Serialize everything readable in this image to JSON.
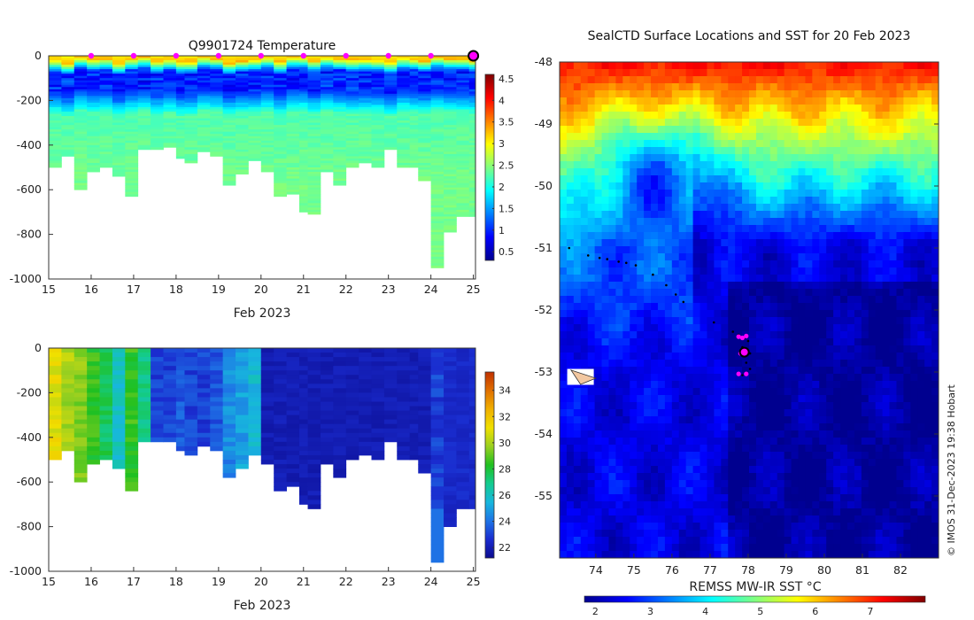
{
  "colors": {
    "jet": [
      "#00008f",
      "#0000ff",
      "#0080ff",
      "#00ffff",
      "#80ff80",
      "#ffff00",
      "#ff8000",
      "#ff0000",
      "#800000"
    ],
    "parula": [
      "#0b0b8f",
      "#1a2ccf",
      "#1e74e6",
      "#17b7dd",
      "#13cc8f",
      "#20c020",
      "#9ad020",
      "#f0e000",
      "#f0b000",
      "#e07000",
      "#c03000"
    ],
    "marker": "#ff00ff",
    "land": "#f2c7a0"
  },
  "chart_data": [
    {
      "id": "temperature-section",
      "type": "heatmap",
      "title": "Q9901724  Temperature",
      "xlabel": "Feb 2023",
      "ylabel": "",
      "x_ticks": [
        "15",
        "16",
        "17",
        "18",
        "19",
        "20",
        "21",
        "22",
        "23",
        "24",
        "25"
      ],
      "y_ticks": [
        "0",
        "-200",
        "-400",
        "-600",
        "-800",
        "-1000"
      ],
      "xlim": [
        15,
        25.05
      ],
      "ylim": [
        -1000,
        0
      ],
      "colorbar": {
        "min": 0.3,
        "max": 4.6,
        "ticks": [
          "0.5",
          "1",
          "1.5",
          "2",
          "2.5",
          "3",
          "3.5",
          "4",
          "4.5"
        ]
      },
      "profile_dates": [
        15.0,
        15.3,
        15.6,
        15.9,
        16.2,
        16.5,
        16.8,
        17.1,
        17.4,
        17.7,
        18.0,
        18.2,
        18.5,
        18.8,
        19.1,
        19.4,
        19.7,
        20.0,
        20.3,
        20.6,
        20.9,
        21.1,
        21.4,
        21.7,
        22.0,
        22.3,
        22.6,
        22.9,
        23.2,
        23.5,
        23.7,
        24.0,
        24.3,
        24.6,
        24.9,
        25.05
      ],
      "profile_max_depths": [
        -500,
        -450,
        -600,
        -520,
        -500,
        -540,
        -630,
        -420,
        -420,
        -410,
        -460,
        -480,
        -430,
        -450,
        -580,
        -530,
        -470,
        -520,
        -630,
        -620,
        -700,
        -710,
        -520,
        -580,
        -500,
        -480,
        -500,
        -420,
        -500,
        -500,
        -560,
        -950,
        -790,
        -720,
        -720,
        -550
      ],
      "surface_markers": [
        16,
        17,
        18,
        19,
        20,
        21,
        22,
        23,
        24
      ],
      "current_marker": 25
    },
    {
      "id": "second-section",
      "type": "heatmap",
      "title": "",
      "xlabel": "Feb 2023",
      "x_ticks": [
        "15",
        "16",
        "17",
        "18",
        "19",
        "20",
        "21",
        "22",
        "23",
        "24",
        "25"
      ],
      "y_ticks": [
        "0",
        "-200",
        "-400",
        "-600",
        "-800",
        "-1000"
      ],
      "xlim": [
        15,
        25.05
      ],
      "ylim": [
        -1000,
        0
      ],
      "colorbar": {
        "min": 21.2,
        "max": 35.4,
        "ticks": [
          "22",
          "24",
          "26",
          "28",
          "30",
          "32",
          "34"
        ]
      },
      "profile_values": [
        31,
        30,
        29.5,
        28.5,
        27.5,
        26,
        28.5,
        27,
        23,
        23,
        23.5,
        23,
        23,
        23.5,
        24.5,
        25,
        25.5,
        22,
        22,
        22,
        22,
        22,
        22,
        22,
        22,
        22,
        22,
        22,
        22,
        22,
        22,
        23,
        22.5,
        22.5,
        22.5,
        22.5
      ]
    },
    {
      "id": "sst-map",
      "type": "heatmap",
      "title": "SealCTD Surface Locations and SST for 20 Feb 2023",
      "xlabel": "REMSS MW-IR SST °C",
      "x_ticks": [
        "74",
        "75",
        "76",
        "77",
        "78",
        "79",
        "80",
        "81",
        "82"
      ],
      "y_ticks": [
        "-48",
        "-49",
        "-50",
        "-51",
        "-52",
        "-53",
        "-54",
        "-55"
      ],
      "xlim": [
        73.05,
        83.0
      ],
      "ylim": [
        -56.0,
        -48.0
      ],
      "colorbar": {
        "min": 1.8,
        "max": 8.0,
        "ticks": [
          "2",
          "3",
          "4",
          "5",
          "6",
          "7"
        ]
      },
      "track_points": [
        [
          73.3,
          -51.0
        ],
        [
          73.8,
          -51.12
        ],
        [
          74.1,
          -51.16
        ],
        [
          74.3,
          -51.18
        ],
        [
          74.6,
          -51.22
        ],
        [
          74.8,
          -51.24
        ],
        [
          75.05,
          -51.28
        ],
        [
          75.5,
          -51.43
        ],
        [
          75.85,
          -51.6
        ],
        [
          76.1,
          -51.75
        ],
        [
          76.3,
          -51.87
        ],
        [
          77.1,
          -52.2
        ],
        [
          77.6,
          -52.35
        ],
        [
          77.75,
          -52.4
        ],
        [
          77.9,
          -52.45
        ],
        [
          78.0,
          -52.5
        ],
        [
          77.85,
          -52.6
        ],
        [
          78.05,
          -52.7
        ],
        [
          77.95,
          -52.85
        ],
        [
          78.05,
          -52.95
        ],
        [
          77.85,
          -53.05
        ]
      ],
      "surface_markers": [
        [
          77.75,
          -52.43
        ],
        [
          77.85,
          -52.45
        ],
        [
          77.95,
          -52.42
        ],
        [
          77.8,
          -52.7
        ],
        [
          77.9,
          -52.72
        ],
        [
          77.75,
          -53.03
        ],
        [
          77.95,
          -53.03
        ]
      ],
      "current_position": [
        77.9,
        -52.68
      ]
    }
  ],
  "footer": {
    "copyright": "© IMOS 31-Dec-2023 19:38 Hobart"
  }
}
